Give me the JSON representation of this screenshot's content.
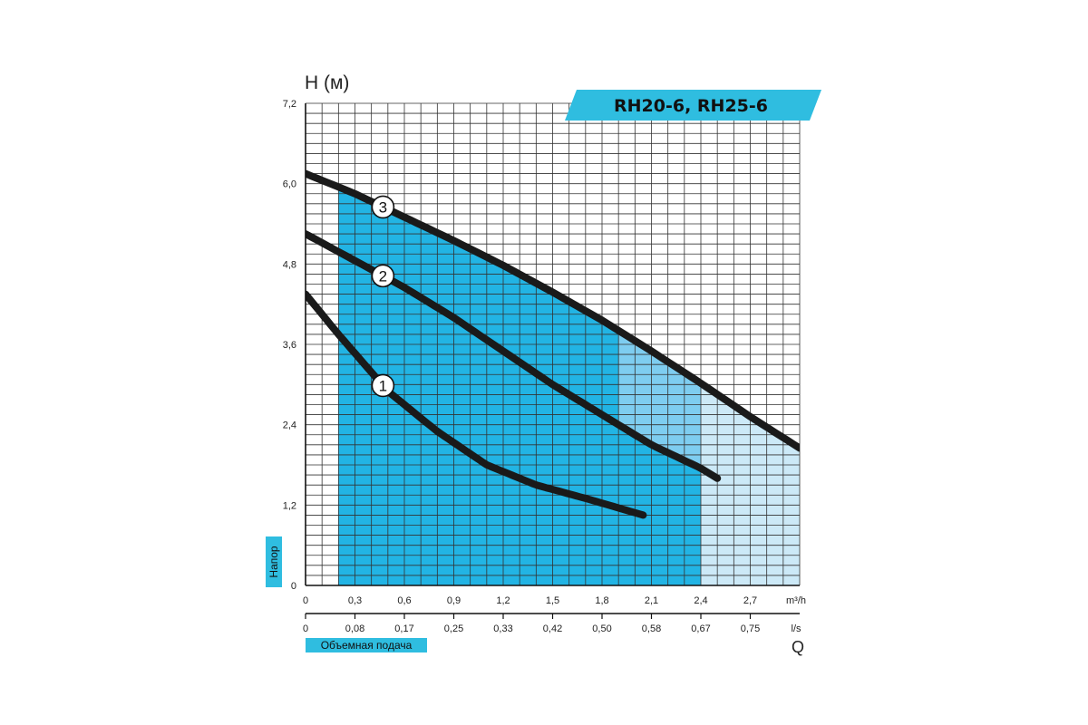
{
  "chart_data": {
    "type": "line",
    "title": "RH20-6, RH25-6",
    "ylabel": "H (м)",
    "ylabel_side": "Напор",
    "xlabel": "Q",
    "xlabel_side": "Объемная подача",
    "x_unit_m3h": "m³/h",
    "x_unit_ls": "l/s",
    "xlim": [
      0,
      3.0
    ],
    "ylim": [
      0,
      7.2
    ],
    "grid": true,
    "y_ticks": [
      "0",
      "1,2",
      "2,4",
      "3,6",
      "4,8",
      "6,0",
      "7,2"
    ],
    "x_ticks_m3h": [
      "0",
      "0,3",
      "0,6",
      "0,9",
      "1,2",
      "1,5",
      "1,8",
      "2,1",
      "2,4",
      "2,7"
    ],
    "x_ticks_ls": [
      "0",
      "0,08",
      "0,17",
      "0,25",
      "0,33",
      "0,42",
      "0,50",
      "0,58",
      "0,67",
      "0,75"
    ],
    "series": [
      {
        "name": "1",
        "x": [
          0,
          0.2,
          0.5,
          0.8,
          1.1,
          1.4,
          1.7,
          2.05
        ],
        "y": [
          4.35,
          3.75,
          2.9,
          2.3,
          1.8,
          1.5,
          1.3,
          1.05
        ]
      },
      {
        "name": "2",
        "x": [
          0,
          0.3,
          0.6,
          0.9,
          1.2,
          1.5,
          1.8,
          2.1,
          2.4,
          2.5
        ],
        "y": [
          5.25,
          4.85,
          4.45,
          4.0,
          3.5,
          3.0,
          2.55,
          2.1,
          1.75,
          1.6
        ]
      },
      {
        "name": "3",
        "x": [
          0,
          0.3,
          0.6,
          0.9,
          1.2,
          1.5,
          1.8,
          2.1,
          2.4,
          2.7,
          3.0
        ],
        "y": [
          6.15,
          5.85,
          5.5,
          5.15,
          4.78,
          4.38,
          3.96,
          3.5,
          3.02,
          2.52,
          2.05
        ]
      }
    ],
    "regions": [
      {
        "from": 0.2,
        "to": 1.9,
        "under": "3",
        "color": "#22b4e4"
      },
      {
        "from": 1.9,
        "to": 2.4,
        "under": "2",
        "color": "#22b4e4"
      }
    ],
    "colors": {
      "light_fill": "#cce9f7",
      "mid_fill": "#7ecdf0",
      "dark_fill": "#22b4e4",
      "grid": "#333333",
      "curve": "#1a1a1a",
      "badge": "#2fbde0"
    }
  }
}
